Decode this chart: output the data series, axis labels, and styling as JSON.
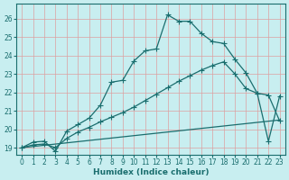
{
  "background_color": "#c8eef0",
  "grid_color": "#dda0a0",
  "line_color": "#1a6e6e",
  "xlabel": "Humidex (Indice chaleur)",
  "xlim": [
    -0.5,
    23.5
  ],
  "ylim": [
    18.6,
    26.8
  ],
  "yticks": [
    19,
    20,
    21,
    22,
    23,
    24,
    25,
    26
  ],
  "xticks": [
    0,
    1,
    2,
    3,
    4,
    5,
    6,
    7,
    8,
    9,
    10,
    11,
    12,
    13,
    14,
    15,
    16,
    17,
    18,
    19,
    20,
    21,
    22,
    23
  ],
  "curve1_x": [
    0,
    1,
    2,
    3,
    4,
    5,
    6,
    7,
    8,
    9,
    10,
    11,
    12,
    13,
    14,
    15,
    16,
    17,
    18,
    19,
    20,
    21,
    22,
    23
  ],
  "curve1_y": [
    19.0,
    19.3,
    19.35,
    18.8,
    19.9,
    20.25,
    20.6,
    21.3,
    22.55,
    22.65,
    23.7,
    24.25,
    24.35,
    26.2,
    25.85,
    25.85,
    25.2,
    24.75,
    24.65,
    23.8,
    23.05,
    21.95,
    19.35,
    21.8
  ],
  "curve2_x": [
    0,
    1,
    2,
    3,
    4,
    5,
    6,
    7,
    8,
    9,
    10,
    11,
    12,
    13,
    14,
    15,
    16,
    17,
    18,
    19,
    20,
    21,
    22,
    23
  ],
  "curve2_y": [
    19.0,
    19.15,
    19.2,
    19.0,
    19.5,
    19.85,
    20.1,
    20.4,
    20.65,
    20.9,
    21.2,
    21.55,
    21.9,
    22.25,
    22.6,
    22.9,
    23.2,
    23.45,
    23.65,
    23.0,
    22.2,
    21.95,
    21.85,
    20.45
  ],
  "curve3_x": [
    0,
    23
  ],
  "curve3_y": [
    19.0,
    20.5
  ],
  "marker": "+",
  "markersize": 4,
  "linewidth": 0.9,
  "tick_fontsize": 5.5,
  "xlabel_fontsize": 6.5
}
